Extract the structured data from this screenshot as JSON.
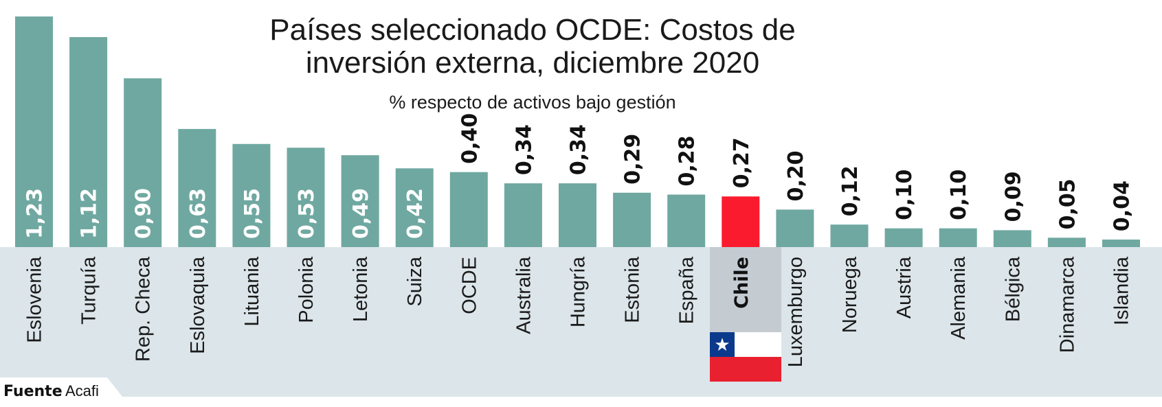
{
  "colors": {
    "bar": "#6fa8a1",
    "highlight_bar": "#fb1b2e",
    "label_band": "#dce5ea",
    "highlight_band": "#c4ccd2",
    "flag_blue": "#0b3a8c",
    "flag_red": "#e8202f",
    "flag_white": "#ffffff"
  },
  "chart_data": {
    "type": "bar",
    "title_lines": [
      "Países seleccionado OCDE: Costos de",
      "inversión externa, diciembre 2020"
    ],
    "subtitle": "% respecto de activos bajo gestión",
    "categories": [
      "Eslovenia",
      "Turquía",
      "Rep. Checa",
      "Eslovaquia",
      "Lituania",
      "Polonia",
      "Letonia",
      "Suiza",
      "OCDE",
      "Australia",
      "Hungría",
      "Estonia",
      "España",
      "Chile",
      "Luxemburgo",
      "Noruega",
      "Austria",
      "Alemania",
      "Bélgica",
      "Dinamarca",
      "Islandia"
    ],
    "values": [
      1.23,
      1.12,
      0.9,
      0.63,
      0.55,
      0.53,
      0.49,
      0.42,
      0.4,
      0.34,
      0.34,
      0.29,
      0.28,
      0.27,
      0.2,
      0.12,
      0.1,
      0.1,
      0.09,
      0.05,
      0.04
    ],
    "value_labels": [
      "1,23",
      "1,12",
      "0,90",
      "0,63",
      "0,55",
      "0,53",
      "0,49",
      "0,42",
      "0,40",
      "0,34",
      "0,34",
      "0,29",
      "0,28",
      "0,27",
      "0,20",
      "0,12",
      "0,10",
      "0,10",
      "0,09",
      "0,05",
      "0,04"
    ],
    "highlight": "Chile",
    "highlight_icon": "chile-flag-icon",
    "ylim": [
      0,
      1.23
    ],
    "grid": false,
    "legend": "none"
  },
  "source": {
    "label": "Fuente",
    "value": "Acafi"
  }
}
